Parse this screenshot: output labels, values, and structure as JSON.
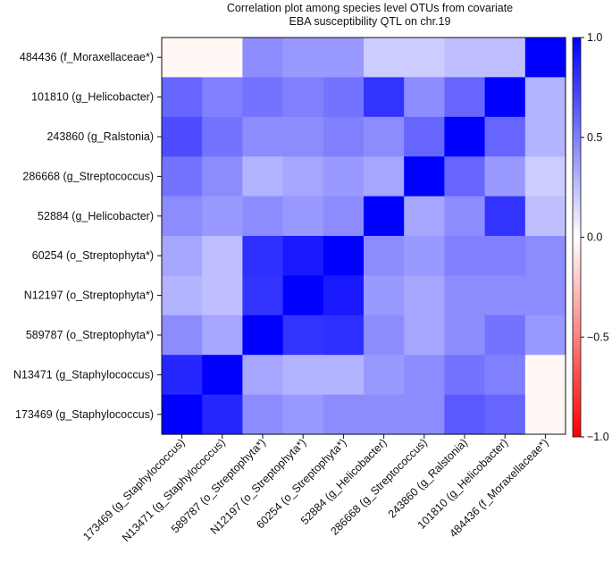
{
  "chart_data": {
    "type": "heatmap",
    "title_lines": [
      "Correlation plot among species level OTUs from covariate",
      "EBA susceptibility QTL on chr.19"
    ],
    "row_labels": [
      "484436 (f_Moraxellaceae*)",
      "101810 (g_Helicobacter)",
      "243860 (g_Ralstonia)",
      "286668 (g_Streptococcus)",
      "52884 (g_Helicobacter)",
      "60254 (o_Streptophyta*)",
      "N12197 (o_Streptophyta*)",
      "589787 (o_Streptophyta*)",
      "N13471 (g_Staphylococcus)",
      "173469 (g_Staphylococcus)"
    ],
    "col_labels": [
      "173469 (g_Staphylococcus)",
      "N13471 (g_Staphylococcus)",
      "589787 (o_Streptophyta*)",
      "N12197 (o_Streptophyta*)",
      "60254 (o_Streptophyta*)",
      "52884 (g_Helicobacter)",
      "286668 (g_Streptococcus)",
      "243860 (g_Ralstonia)",
      "101810 (g_Helicobacter)",
      "484436 (f_Moraxellaceae*)"
    ],
    "values": [
      [
        0.02,
        0.02,
        0.45,
        0.4,
        0.4,
        0.2,
        0.2,
        0.25,
        0.25,
        1.0
      ],
      [
        0.6,
        0.5,
        0.55,
        0.5,
        0.55,
        0.8,
        0.45,
        0.6,
        1.0,
        0.3
      ],
      [
        0.7,
        0.55,
        0.45,
        0.45,
        0.5,
        0.45,
        0.6,
        1.0,
        0.6,
        0.3
      ],
      [
        0.55,
        0.45,
        0.3,
        0.35,
        0.4,
        0.35,
        1.0,
        0.6,
        0.4,
        0.2
      ],
      [
        0.45,
        0.4,
        0.45,
        0.4,
        0.45,
        1.0,
        0.35,
        0.45,
        0.8,
        0.25
      ],
      [
        0.35,
        0.25,
        0.82,
        0.9,
        1.0,
        0.45,
        0.4,
        0.5,
        0.5,
        0.45
      ],
      [
        0.3,
        0.25,
        0.8,
        1.0,
        0.9,
        0.4,
        0.35,
        0.45,
        0.45,
        0.45
      ],
      [
        0.45,
        0.35,
        1.0,
        0.8,
        0.82,
        0.45,
        0.35,
        0.45,
        0.55,
        0.4
      ],
      [
        0.85,
        1.0,
        0.35,
        0.3,
        0.3,
        0.4,
        0.45,
        0.55,
        0.5,
        0.02
      ],
      [
        1.0,
        0.85,
        0.45,
        0.4,
        0.45,
        0.45,
        0.45,
        0.65,
        0.6,
        0.02
      ]
    ],
    "colorbar_ticks": [
      {
        "value": 1.0,
        "label": "1.0"
      },
      {
        "value": 0.5,
        "label": "0.5"
      },
      {
        "value": 0.0,
        "label": "0.0"
      },
      {
        "value": -0.5,
        "label": "−0.5"
      },
      {
        "value": -1.0,
        "label": "−1.0"
      }
    ],
    "colorbar_range": [
      -1.0,
      1.0
    ],
    "colors": {
      "positive": "#0000ff",
      "negative": "#ff0000",
      "zero": "#fff8f5",
      "frame": "#111111"
    }
  }
}
